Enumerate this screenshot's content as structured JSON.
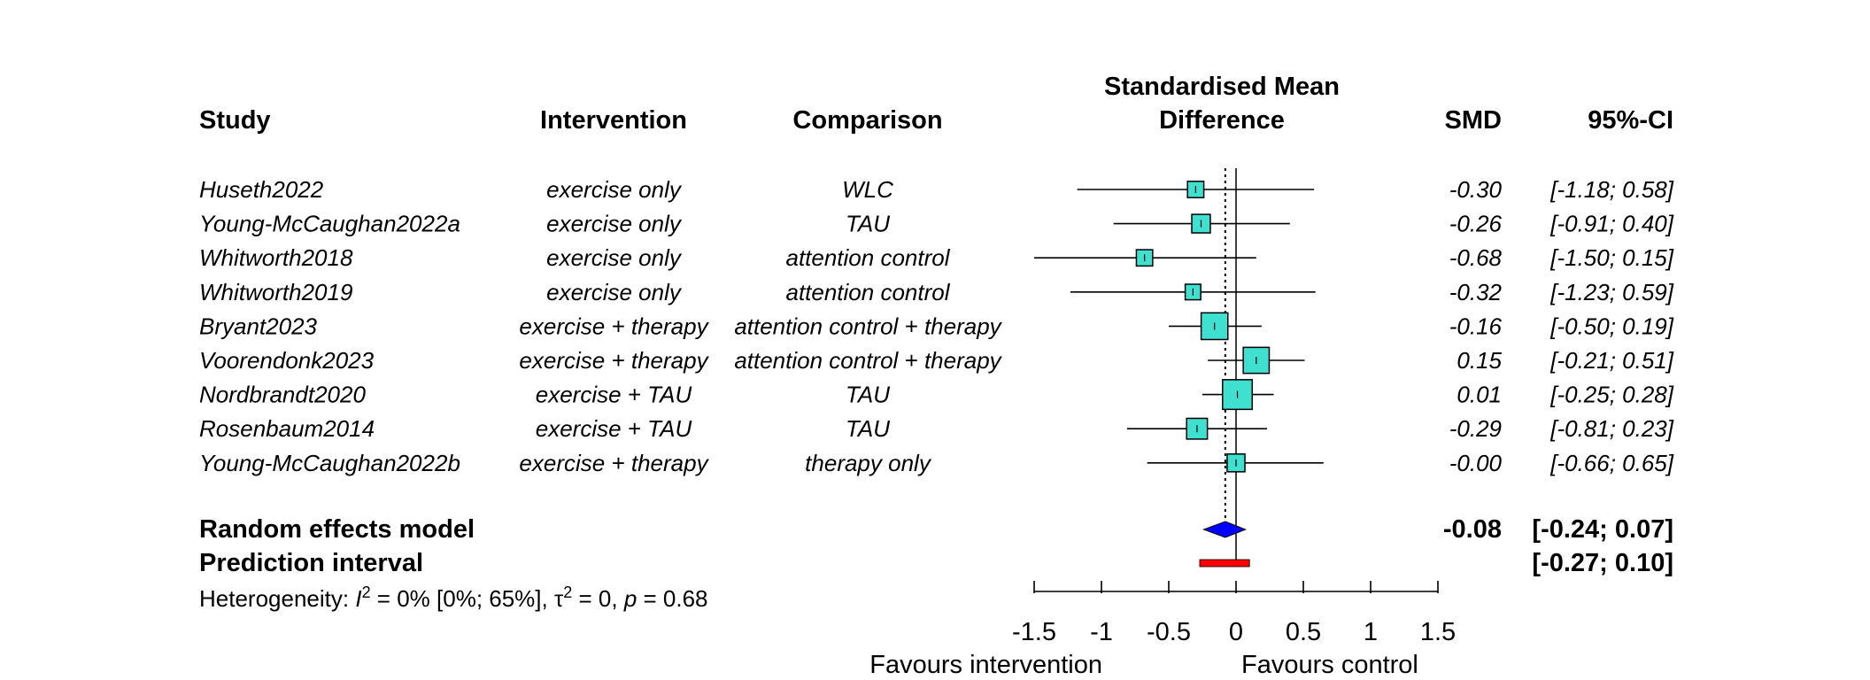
{
  "chart_data": {
    "type": "forest",
    "headers": {
      "study": "Study",
      "intervention": "Intervention",
      "comparison": "Comparison",
      "effect_line1": "Standardised Mean",
      "effect_line2": "Difference",
      "smd": "SMD",
      "ci": "95%-CI"
    },
    "studies": [
      {
        "study": "Huseth2022",
        "intervention": "exercise only",
        "comparison": "WLC",
        "smd": -0.3,
        "lower": -1.18,
        "upper": 0.58,
        "smd_text": "-0.30",
        "ci_text": "[-1.18; 0.58]",
        "weight": 1.0
      },
      {
        "study": "Young-McCaughan2022a",
        "intervention": "exercise only",
        "comparison": "TAU",
        "smd": -0.26,
        "lower": -0.91,
        "upper": 0.4,
        "smd_text": "-0.26",
        "ci_text": "[-0.91; 0.40]",
        "weight": 1.3
      },
      {
        "study": "Whitworth2018",
        "intervention": "exercise only",
        "comparison": "attention control",
        "smd": -0.68,
        "lower": -1.5,
        "upper": 0.15,
        "smd_text": "-0.68",
        "ci_text": "[-1.50; 0.15]",
        "weight": 1.0
      },
      {
        "study": "Whitworth2019",
        "intervention": "exercise only",
        "comparison": "attention control",
        "smd": -0.32,
        "lower": -1.23,
        "upper": 0.59,
        "smd_text": "-0.32",
        "ci_text": "[-1.23; 0.59]",
        "weight": 0.9
      },
      {
        "study": "Bryant2023",
        "intervention": "exercise + therapy",
        "comparison": "attention control + therapy",
        "smd": -0.16,
        "lower": -0.5,
        "upper": 0.19,
        "smd_text": "-0.16",
        "ci_text": "[-0.50; 0.19]",
        "weight": 2.4
      },
      {
        "study": "Voorendonk2023",
        "intervention": "exercise + therapy",
        "comparison": "attention control + therapy",
        "smd": 0.15,
        "lower": -0.21,
        "upper": 0.51,
        "smd_text": "0.15",
        "ci_text": "[-0.21; 0.51]",
        "weight": 2.3
      },
      {
        "study": "Nordbrandt2020",
        "intervention": "exercise + TAU",
        "comparison": "TAU",
        "smd": 0.01,
        "lower": -0.25,
        "upper": 0.28,
        "smd_text": "0.01",
        "ci_text": "[-0.25; 0.28]",
        "weight": 2.8
      },
      {
        "study": "Rosenbaum2014",
        "intervention": "exercise + TAU",
        "comparison": "TAU",
        "smd": -0.29,
        "lower": -0.81,
        "upper": 0.23,
        "smd_text": "-0.29",
        "ci_text": "[-0.81; 0.23]",
        "weight": 1.6
      },
      {
        "study": "Young-McCaughan2022b",
        "intervention": "exercise + therapy",
        "comparison": "therapy only",
        "smd": -0.0,
        "lower": -0.66,
        "upper": 0.65,
        "smd_text": "-0.00",
        "ci_text": "[-0.66; 0.65]",
        "weight": 1.2
      }
    ],
    "pooled": {
      "label": "Random effects model",
      "smd": -0.08,
      "lower": -0.24,
      "upper": 0.07,
      "smd_text": "-0.08",
      "ci_text": "[-0.24; 0.07]"
    },
    "prediction": {
      "label": "Prediction interval",
      "lower": -0.27,
      "upper": 0.1,
      "ci_text": "[-0.27; 0.10]"
    },
    "heterogeneity": {
      "prefix": "Heterogeneity: ",
      "i2": "I",
      "i2_value": " = 0% [0%; 65%], ",
      "tau2": "τ",
      "tau2_value": " = 0, ",
      "p": "p",
      "p_value": " = 0.68"
    },
    "x_axis": {
      "lim": [
        -1.5,
        1.5
      ],
      "ticks": [
        -1.5,
        -1,
        -0.5,
        0,
        0.5,
        1,
        1.5
      ],
      "tick_labels": [
        "-1.5",
        "-1",
        "-0.5",
        "0",
        "0.5",
        "1",
        "1.5"
      ],
      "label_left": "Favours intervention",
      "label_right": "Favours control"
    },
    "null_value": 0,
    "colors": {
      "square": "#40e0d0",
      "diamond": "#0000ff",
      "prediction": "#ff0000",
      "line": "#000000"
    }
  }
}
